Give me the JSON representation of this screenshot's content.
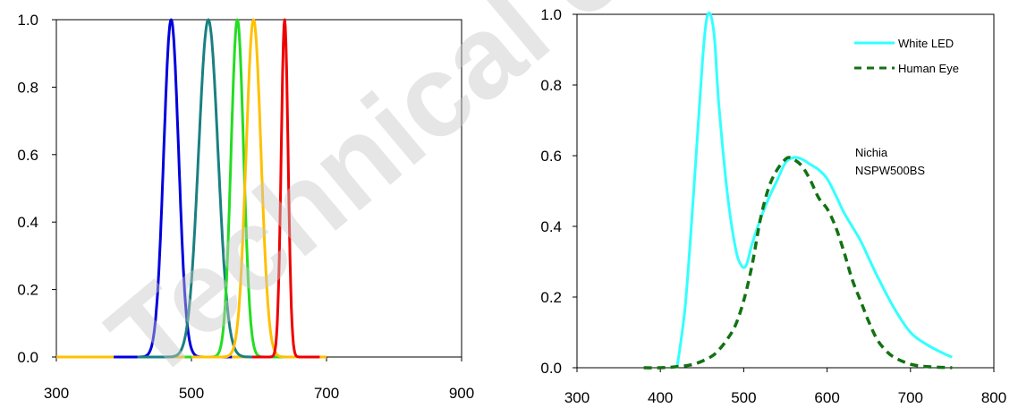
{
  "chart_data": [
    {
      "type": "line",
      "title": "",
      "xlabel": "",
      "ylabel": "",
      "xlim": [
        300,
        900
      ],
      "ylim": [
        0,
        1.0
      ],
      "x_ticks": [
        "300",
        "500",
        "700",
        "900"
      ],
      "y_ticks": [
        "0.0",
        "0.2",
        "0.4",
        "0.6",
        "0.8",
        "1.0"
      ],
      "grid": false,
      "legend": "none",
      "series": [
        {
          "color": "#0000dd",
          "peak_x": 470,
          "fwhm": 26,
          "x_range": [
            385,
            560
          ]
        },
        {
          "color": "#1a8080",
          "peak_x": 525,
          "fwhm": 34,
          "x_range": [
            420,
            620
          ]
        },
        {
          "color": "#22dd22",
          "peak_x": 568,
          "fwhm": 22,
          "x_range": [
            490,
            650
          ]
        },
        {
          "color": "#ffc000",
          "peak_x": 592,
          "fwhm": 26,
          "x_range": [
            500,
            680
          ]
        },
        {
          "color": "#ee0000",
          "peak_x": 638,
          "fwhm": 12,
          "x_range": [
            590,
            690
          ]
        }
      ],
      "baseline_series": {
        "color": "#ffc000",
        "x": [
          300,
          700
        ],
        "y": [
          0,
          0
        ]
      }
    },
    {
      "type": "line",
      "title": "",
      "xlabel": "",
      "ylabel": "",
      "xlim": [
        300,
        800
      ],
      "ylim": [
        0,
        1.0
      ],
      "x_ticks": [
        "300",
        "400",
        "500",
        "600",
        "700",
        "800"
      ],
      "y_ticks": [
        "0.0",
        "0.2",
        "0.4",
        "0.6",
        "0.8",
        "1.0"
      ],
      "grid": false,
      "legend": "top-right",
      "annotation": [
        "Nichia",
        "NSPW500BS"
      ],
      "series": [
        {
          "name": "White LED",
          "color": "#33ffff",
          "style": "solid",
          "x": [
            420,
            430,
            440,
            450,
            455,
            460,
            465,
            470,
            480,
            490,
            497,
            503,
            510,
            520,
            530,
            540,
            550,
            560,
            570,
            580,
            590,
            600,
            610,
            620,
            630,
            640,
            650,
            660,
            680,
            700,
            720,
            740,
            750
          ],
          "y": [
            0.0,
            0.18,
            0.5,
            0.85,
            0.98,
            1.0,
            0.93,
            0.75,
            0.5,
            0.34,
            0.29,
            0.29,
            0.35,
            0.42,
            0.48,
            0.53,
            0.58,
            0.595,
            0.59,
            0.575,
            0.56,
            0.535,
            0.49,
            0.44,
            0.4,
            0.36,
            0.31,
            0.26,
            0.17,
            0.1,
            0.065,
            0.04,
            0.03
          ]
        },
        {
          "name": "Human Eye",
          "color": "#127212",
          "style": "dashed",
          "x": [
            380,
            400,
            420,
            440,
            460,
            470,
            480,
            490,
            500,
            510,
            520,
            530,
            540,
            550,
            555,
            560,
            570,
            580,
            590,
            600,
            610,
            620,
            630,
            640,
            650,
            660,
            670,
            680,
            700,
            720,
            740,
            750
          ],
          "y": [
            0.0,
            0.0,
            0.003,
            0.01,
            0.03,
            0.05,
            0.08,
            0.12,
            0.19,
            0.29,
            0.42,
            0.51,
            0.56,
            0.59,
            0.595,
            0.59,
            0.57,
            0.53,
            0.48,
            0.45,
            0.4,
            0.33,
            0.25,
            0.19,
            0.13,
            0.08,
            0.05,
            0.03,
            0.01,
            0.003,
            0.001,
            0.0
          ]
        }
      ]
    }
  ],
  "watermark": "Technical content"
}
